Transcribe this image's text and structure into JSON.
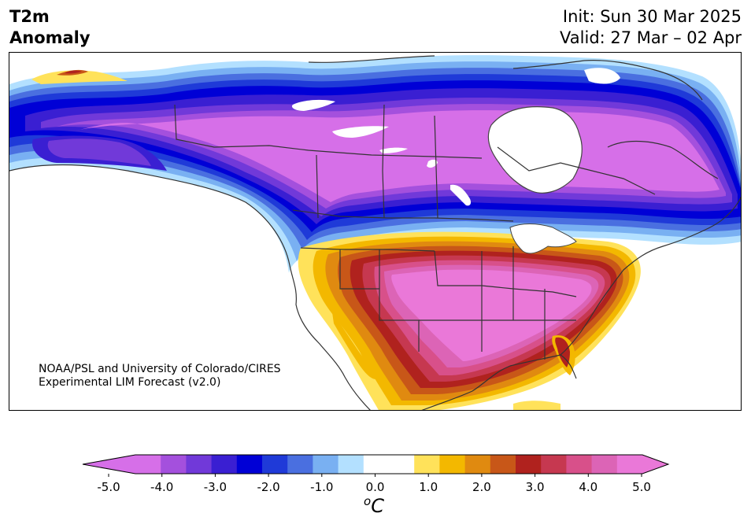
{
  "header": {
    "title_line1": "T2m",
    "title_line2": "Anomaly",
    "init_text": "Init: Sun 30 Mar 2025",
    "valid_text": "Valid: 27 Mar – 02 Apr"
  },
  "map": {
    "credit_line1": "NOAA/PSL and University of Colorado/CIRES",
    "credit_line2": "Experimental LIM Forecast (v2.0)"
  },
  "colorbar": {
    "unit_base": "C",
    "unit_sup": "o",
    "ticks": [
      "-5.0",
      "-4.0",
      "-3.0",
      "-2.0",
      "-1.0",
      "0.0",
      "1.0",
      "2.0",
      "3.0",
      "4.0",
      "5.0"
    ],
    "colors": [
      "#d66fe8",
      "#a450dd",
      "#7139d9",
      "#3a1fd2",
      "#0000d6",
      "#1f3ad8",
      "#4a6fe0",
      "#79b0f2",
      "#b3e0ff",
      "#ffffff",
      "#ffffff",
      "#ffe25a",
      "#f3b800",
      "#e08a10",
      "#c85718",
      "#b0221e",
      "#c63850",
      "#d8508a",
      "#dc64b6",
      "#ea78d8"
    ],
    "low_extend_color": "#d66fe8",
    "high_extend_color": "#ea78d8"
  }
}
